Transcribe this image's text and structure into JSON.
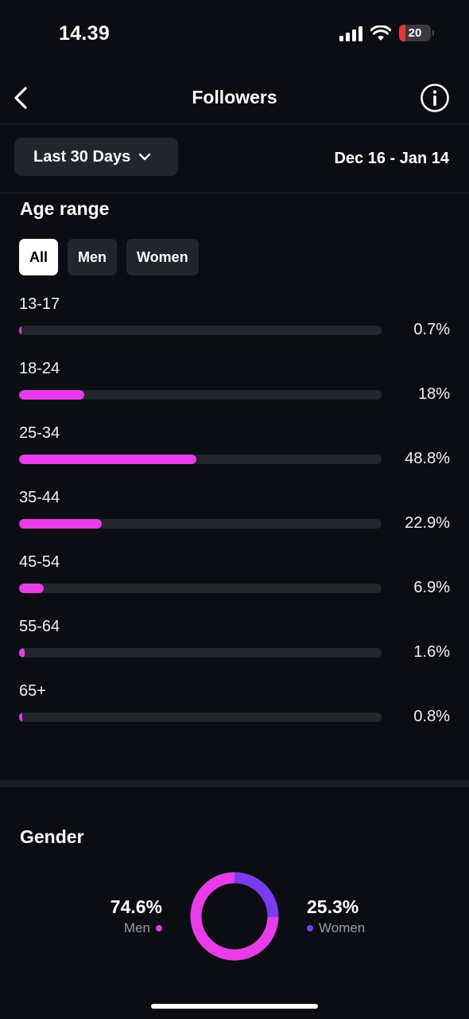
{
  "status": {
    "time": "14.39",
    "battery": "20"
  },
  "header": {
    "title": "Followers"
  },
  "filter": {
    "period_label": "Last 30 Days",
    "date_range": "Dec 16 - Jan 14"
  },
  "age": {
    "title": "Age range",
    "tabs": [
      {
        "label": "All",
        "active": true
      },
      {
        "label": "Men",
        "active": false
      },
      {
        "label": "Women",
        "active": false
      }
    ],
    "rows": [
      {
        "label": "13-17",
        "value": "0.7%",
        "percent": 0.7
      },
      {
        "label": "18-24",
        "value": "18%",
        "percent": 18
      },
      {
        "label": "25-34",
        "value": "48.8%",
        "percent": 48.8
      },
      {
        "label": "35-44",
        "value": "22.9%",
        "percent": 22.9
      },
      {
        "label": "45-54",
        "value": "6.9%",
        "percent": 6.9
      },
      {
        "label": "55-64",
        "value": "1.6%",
        "percent": 1.6
      },
      {
        "label": "65+",
        "value": "0.8%",
        "percent": 0.8
      }
    ]
  },
  "gender": {
    "title": "Gender",
    "men": {
      "value": "74.6%",
      "label": "Men",
      "percent": 74.6
    },
    "women": {
      "value": "25.3%",
      "label": "Women",
      "percent": 25.3
    }
  },
  "colors": {
    "men": "#e83ce8",
    "women": "#7b3cf0",
    "track": "#23262d",
    "background": "#0b0d12"
  },
  "icons": {
    "back": "chevron-left-icon",
    "info": "info-circle-icon",
    "dropdown": "chevron-down-icon",
    "signal": "cellular-signal-icon",
    "wifi": "wifi-icon",
    "battery": "battery-icon"
  }
}
